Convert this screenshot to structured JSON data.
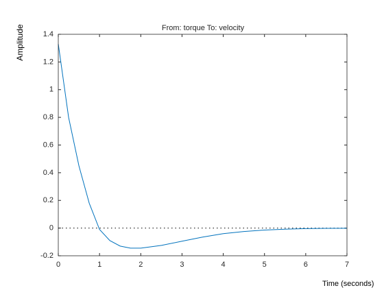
{
  "chart_data": {
    "type": "line",
    "title": "From: torque  To: velocity",
    "ylabel": "Amplitude",
    "xlabel": "Time (seconds)",
    "x": [
      0,
      0.25,
      0.5,
      0.75,
      1,
      1.25,
      1.5,
      1.75,
      2,
      2.5,
      3,
      3.5,
      4,
      4.5,
      5,
      5.5,
      6,
      6.5,
      7
    ],
    "series": [
      {
        "name": "velocity",
        "color": "#0072bd",
        "values": [
          1.33,
          0.8,
          0.45,
          0.18,
          -0.01,
          -0.09,
          -0.13,
          -0.145,
          -0.145,
          -0.125,
          -0.095,
          -0.065,
          -0.04,
          -0.025,
          -0.014,
          -0.008,
          -0.004,
          -0.002,
          -0.001
        ]
      }
    ],
    "xlim": [
      0,
      7
    ],
    "xticks": [
      0,
      1,
      2,
      3,
      4,
      5,
      6,
      7
    ],
    "ylim": [
      -0.2,
      1.4
    ],
    "yticks": [
      -0.2,
      0,
      0.2,
      0.4,
      0.6,
      0.8,
      1,
      1.2,
      1.4
    ],
    "reference_line": 0,
    "grid": false
  }
}
